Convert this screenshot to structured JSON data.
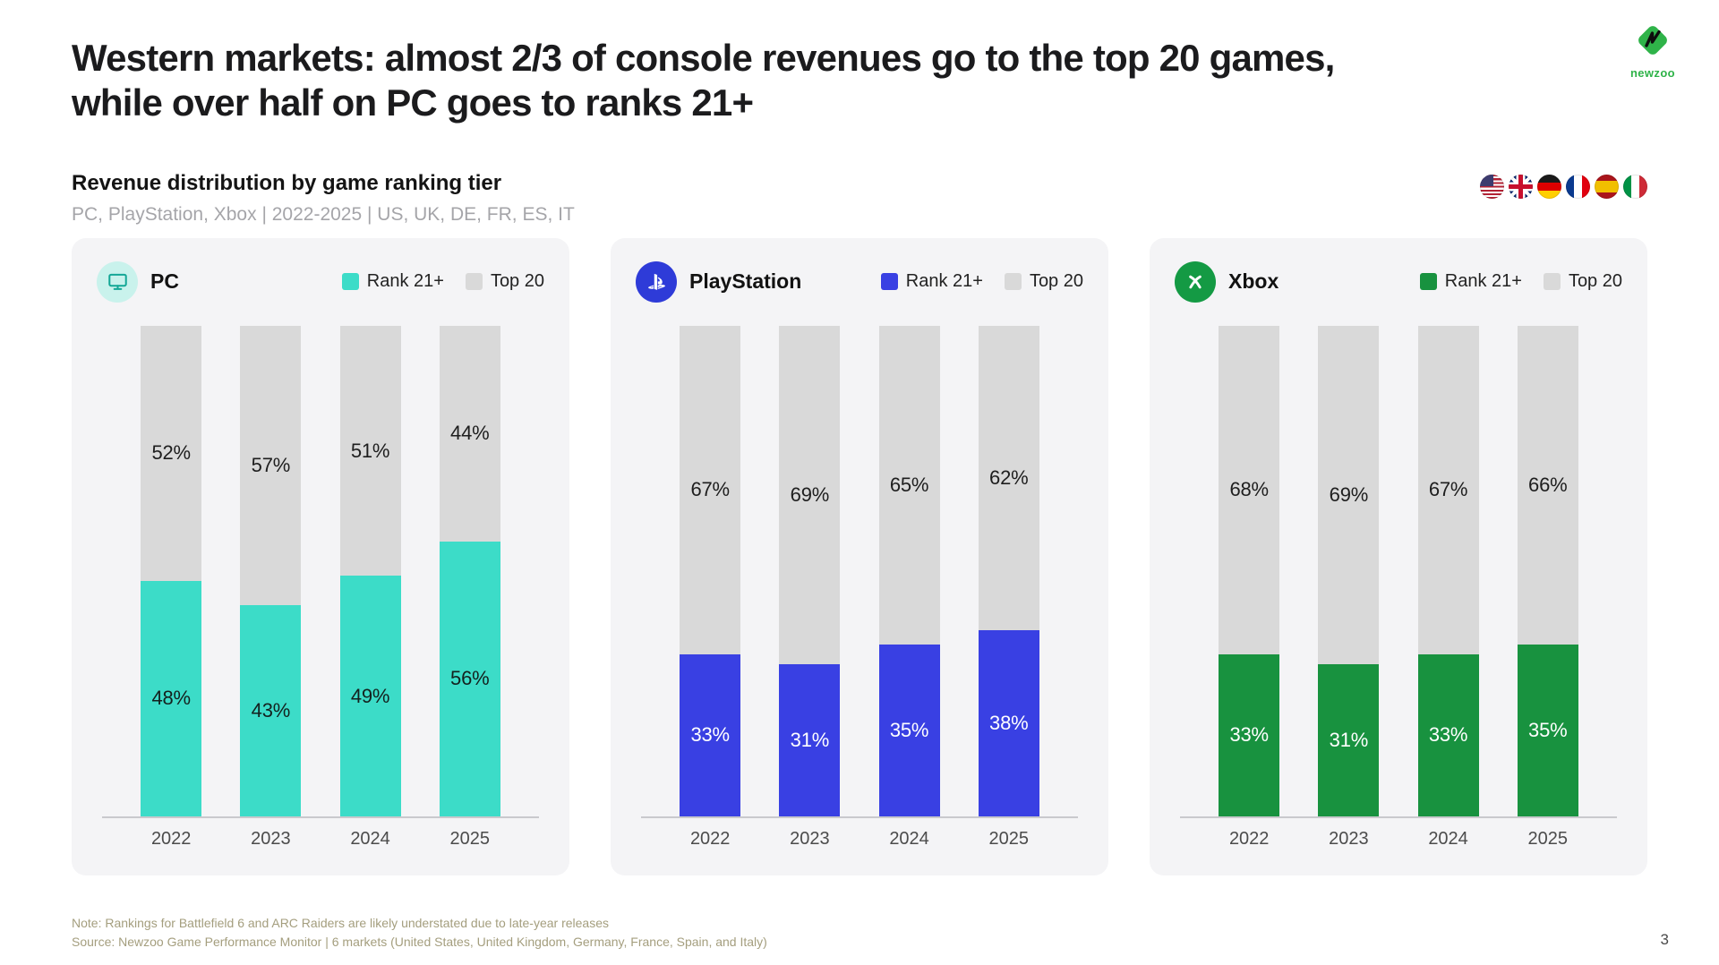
{
  "page": {
    "title_lines": [
      "Western markets: almost 2/3 of console revenues go to the top 20 games,",
      "while over half on PC goes to ranks 21+"
    ],
    "subtitle": "Revenue distribution by game ranking tier",
    "scope": "PC, PlayStation, Xbox | 2022-2025 | US, UK, DE, FR, ES, IT",
    "brand": "newzoo",
    "note": "Note: Rankings for Battlefield 6 and ARC Raiders are likely understated due to late-year releases",
    "source": "Source: Newzoo Game Performance Monitor | 6 markets (United States, United Kingdom, Germany, France, Spain, and Italy)",
    "page_number": "3"
  },
  "flags": [
    "us",
    "uk",
    "de",
    "fr",
    "es",
    "it"
  ],
  "chart_data": [
    {
      "type": "bar",
      "stacked": true,
      "title": "PC",
      "unit": "%",
      "ylim": [
        0,
        100
      ],
      "legend_position": "top-right",
      "categories": [
        "2022",
        "2023",
        "2024",
        "2025"
      ],
      "series": [
        {
          "name": "Rank 21+",
          "color": "#3CDCC8",
          "label_color": "#14211e",
          "values": [
            48,
            43,
            49,
            56
          ]
        },
        {
          "name": "Top 20",
          "color": "#D9D9D9",
          "label_color": "#1e1e1e",
          "values": [
            52,
            57,
            51,
            44
          ]
        }
      ],
      "icon": "pc-monitor-icon",
      "icon_bg": "#C9F2EC",
      "icon_fg": "#14A796"
    },
    {
      "type": "bar",
      "stacked": true,
      "title": "PlayStation",
      "unit": "%",
      "ylim": [
        0,
        100
      ],
      "legend_position": "top-right",
      "categories": [
        "2022",
        "2023",
        "2024",
        "2025"
      ],
      "series": [
        {
          "name": "Rank 21+",
          "color": "#3940E3",
          "label_color": "#ffffff",
          "values": [
            33,
            31,
            35,
            38
          ]
        },
        {
          "name": "Top 20",
          "color": "#D9D9D9",
          "label_color": "#1e1e1e",
          "values": [
            67,
            69,
            65,
            62
          ]
        }
      ],
      "icon": "playstation-icon",
      "icon_bg": "#2E3BD8",
      "icon_fg": "#ffffff"
    },
    {
      "type": "bar",
      "stacked": true,
      "title": "Xbox",
      "unit": "%",
      "ylim": [
        0,
        100
      ],
      "legend_position": "top-right",
      "categories": [
        "2022",
        "2023",
        "2024",
        "2025"
      ],
      "series": [
        {
          "name": "Rank 21+",
          "color": "#18923F",
          "label_color": "#ffffff",
          "values": [
            33,
            31,
            33,
            35
          ]
        },
        {
          "name": "Top 20",
          "color": "#D9D9D9",
          "label_color": "#1e1e1e",
          "values": [
            68,
            69,
            67,
            66
          ]
        }
      ],
      "icon": "xbox-icon",
      "icon_bg": "#149A44",
      "icon_fg": "#ffffff"
    }
  ]
}
